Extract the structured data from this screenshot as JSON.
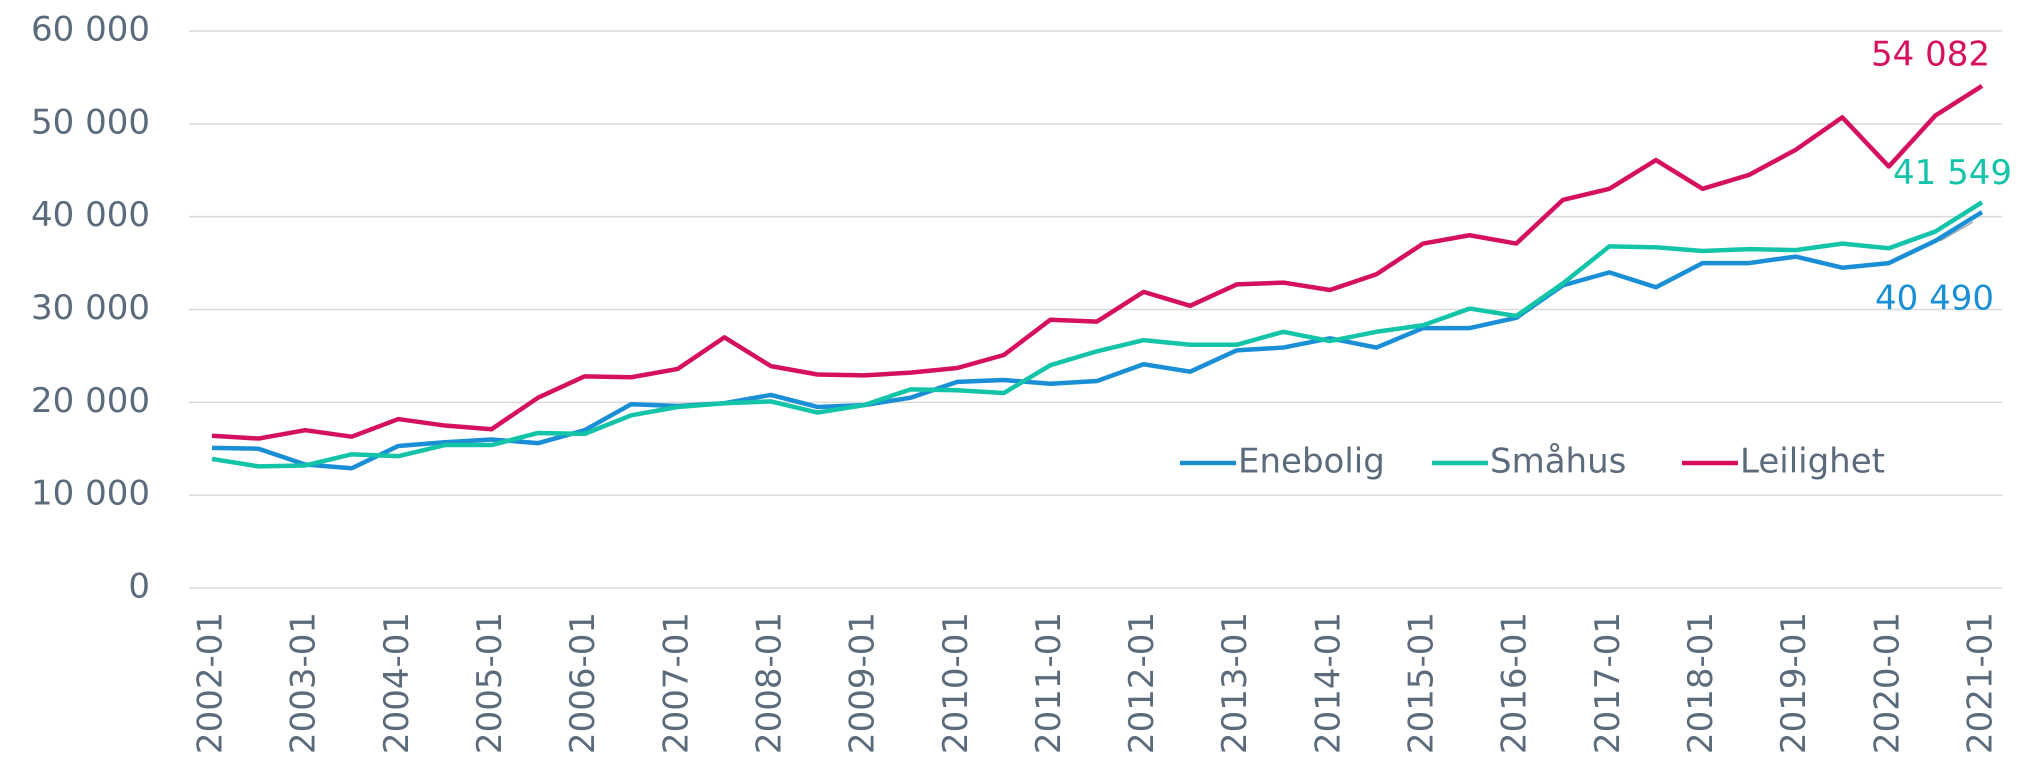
{
  "chart_data": {
    "type": "line",
    "categories": [
      "2002-01",
      null,
      "2003-01",
      null,
      "2004-01",
      null,
      "2005-01",
      null,
      "2006-01",
      null,
      "2007-01",
      null,
      "2008-01",
      null,
      "2009-01",
      null,
      "2010-01",
      null,
      "2011-01",
      null,
      "2012-01",
      null,
      "2013-01",
      null,
      "2014-01",
      null,
      "2015-01",
      null,
      "2016-01",
      null,
      "2017-01",
      null,
      "2018-01",
      null,
      "2019-01",
      null,
      "2020-01",
      null,
      "2021-01"
    ],
    "series": [
      {
        "name": "Enebolig",
        "color": "#1a8fd6",
        "values": [
          15100,
          15000,
          13300,
          12900,
          15300,
          15700,
          16000,
          15600,
          17000,
          19800,
          19600,
          19900,
          20800,
          19500,
          19700,
          20500,
          22200,
          22400,
          22000,
          22300,
          24100,
          23300,
          25600,
          25900,
          26900,
          25900,
          28000,
          28000,
          29100,
          32600,
          34000,
          32400,
          35000,
          35000,
          35700,
          34500,
          35000,
          37400,
          40490
        ],
        "value_labels": [
          null,
          null,
          null,
          null,
          null,
          null,
          null,
          null,
          null,
          null,
          null,
          null,
          null,
          null,
          null,
          null,
          null,
          null,
          null,
          null,
          null,
          null,
          null,
          null,
          null,
          null,
          null,
          null,
          null,
          null,
          null,
          null,
          null,
          null,
          null,
          null,
          null,
          null,
          "40 490"
        ]
      },
      {
        "name": "Småhus",
        "color": "#14c4a8",
        "values": [
          13900,
          13100,
          13200,
          14400,
          14200,
          15400,
          15400,
          16700,
          16600,
          18600,
          19500,
          19900,
          20100,
          18900,
          19700,
          21400,
          21300,
          21000,
          24000,
          25500,
          26700,
          26200,
          26200,
          27600,
          26600,
          27600,
          28300,
          30100,
          29300,
          32800,
          36800,
          36700,
          36300,
          36500,
          36400,
          37100,
          36600,
          38400,
          41549
        ],
        "value_labels": [
          null,
          null,
          null,
          null,
          null,
          null,
          null,
          null,
          null,
          null,
          null,
          null,
          null,
          null,
          null,
          null,
          null,
          null,
          null,
          null,
          null,
          null,
          null,
          null,
          null,
          null,
          null,
          null,
          null,
          null,
          null,
          null,
          null,
          null,
          null,
          null,
          null,
          null,
          "41 549"
        ]
      },
      {
        "name": "Leilighet",
        "color": "#d4105f",
        "values": [
          16400,
          16100,
          17000,
          16300,
          18200,
          17500,
          17100,
          20500,
          22800,
          22700,
          23600,
          27000,
          23900,
          23000,
          22900,
          23200,
          23700,
          25100,
          28900,
          28700,
          31900,
          30400,
          32700,
          32900,
          32100,
          33800,
          37100,
          38000,
          37100,
          41800,
          43000,
          46100,
          43000,
          44500,
          47200,
          50700,
          45400,
          50900,
          54082
        ],
        "value_labels": [
          null,
          null,
          null,
          null,
          null,
          null,
          null,
          null,
          null,
          null,
          null,
          null,
          null,
          null,
          null,
          null,
          null,
          null,
          null,
          null,
          null,
          null,
          null,
          null,
          null,
          null,
          null,
          null,
          null,
          null,
          null,
          null,
          null,
          null,
          null,
          null,
          null,
          null,
          "54 082"
        ]
      }
    ],
    "ylim": [
      0,
      60000
    ],
    "yticks": [
      0,
      {
        "value": 10000,
        "label": "10 000"
      },
      {
        "value": 20000,
        "label": "20 000"
      },
      {
        "value": 30000,
        "label": "30 000"
      },
      {
        "value": 40000,
        "label": "40 000"
      },
      {
        "value": 50000,
        "label": "50 000"
      },
      {
        "value": 60000,
        "label": "60 000"
      }
    ],
    "grid": true,
    "legend": "right"
  }
}
